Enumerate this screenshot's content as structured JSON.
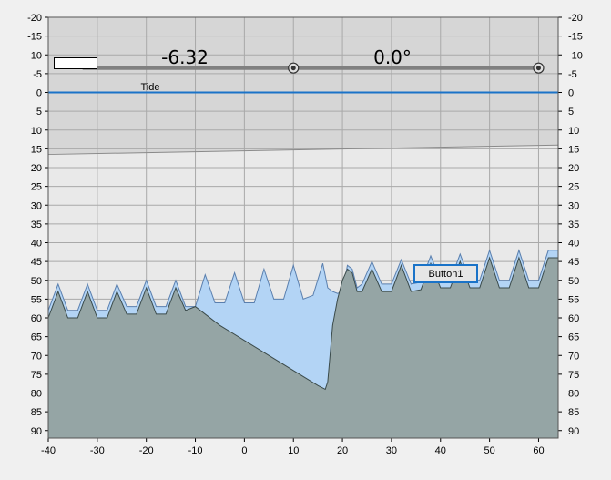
{
  "readouts": {
    "value_label": "-6.32",
    "angle_label": "0.0°",
    "tide_label": "Tide"
  },
  "controls": {
    "button1_label": "Button1"
  },
  "colors": {
    "plot_background": "#e9e9e9",
    "upper_band": "#d6d6d6",
    "grid": "#a9a9a9",
    "water_line": "#1a73c8",
    "sea_fill": "#b3d4f5",
    "sea_outline": "#5a7fae",
    "seabed_fill": "#95a5a5",
    "seabed_outline": "#3a4a4a",
    "button_border": "#1a73c8"
  },
  "chart_data": {
    "type": "area",
    "xlim": [
      -40,
      64
    ],
    "ylim": [
      -20,
      92
    ],
    "y_inverted": true,
    "x_ticks": [
      -40,
      -30,
      -20,
      -10,
      0,
      10,
      20,
      30,
      40,
      50,
      60
    ],
    "y_ticks": [
      -20,
      -15,
      -10,
      -5,
      0,
      5,
      10,
      15,
      20,
      25,
      30,
      35,
      40,
      45,
      50,
      55,
      60,
      65,
      70,
      75,
      80,
      85,
      90
    ],
    "tide_level": 0,
    "reference_line": {
      "x": [
        -40,
        64
      ],
      "y": [
        16.5,
        14
      ]
    },
    "slider_line": {
      "x": [
        -33,
        60
      ],
      "y": -6.5,
      "handles": [
        10,
        60
      ]
    },
    "series": [
      {
        "x": [
          -40,
          -38,
          -36,
          -34,
          -32,
          -30,
          -28,
          -26,
          -24,
          -22,
          -20,
          -18,
          -16,
          -14,
          -12,
          -10,
          -8,
          -6,
          -4,
          -2,
          0,
          2,
          4,
          6,
          8,
          10,
          12,
          14,
          16,
          17,
          18,
          19,
          20,
          21,
          22,
          23,
          24,
          26,
          28,
          30,
          32,
          34,
          36,
          38,
          40,
          42,
          44,
          46,
          48,
          50,
          52,
          54,
          56,
          58,
          60,
          62,
          64
        ],
        "y": [
          58,
          51,
          58,
          58,
          51,
          58,
          58,
          51,
          57,
          57,
          50,
          57,
          57,
          50,
          57,
          57,
          48.5,
          56,
          56,
          48,
          56,
          56,
          47,
          55,
          55,
          46,
          55,
          54,
          45.5,
          52,
          53,
          53.5,
          53,
          46,
          47,
          52,
          51,
          45,
          51,
          51,
          44.5,
          51,
          50.5,
          43.5,
          50,
          50,
          43,
          50,
          50,
          42,
          50,
          50,
          42,
          50,
          50,
          42,
          42
        ]
      },
      {
        "x": [
          -40,
          -38,
          -36,
          -34,
          -32,
          -30,
          -28,
          -26,
          -24,
          -22,
          -20,
          -18,
          -16,
          -14,
          -12,
          -10,
          -5,
          0,
          5,
          10,
          15,
          16.5,
          17,
          18,
          19,
          20,
          21,
          22,
          23,
          24,
          26,
          28,
          30,
          32,
          34,
          36,
          38,
          40,
          42,
          44,
          46,
          48,
          50,
          52,
          54,
          56,
          58,
          60,
          62,
          64
        ],
        "y": [
          60,
          53,
          60,
          60,
          53,
          60,
          60,
          53,
          59,
          59,
          52,
          59,
          59,
          52,
          58,
          57,
          62,
          66,
          70,
          74,
          78,
          79,
          77,
          62,
          55,
          50,
          47,
          48,
          53,
          53,
          47,
          53,
          53,
          46,
          53,
          52.5,
          45.5,
          52,
          52,
          45,
          52,
          52,
          44,
          52,
          52,
          44,
          52,
          52,
          44,
          44
        ]
      }
    ]
  }
}
